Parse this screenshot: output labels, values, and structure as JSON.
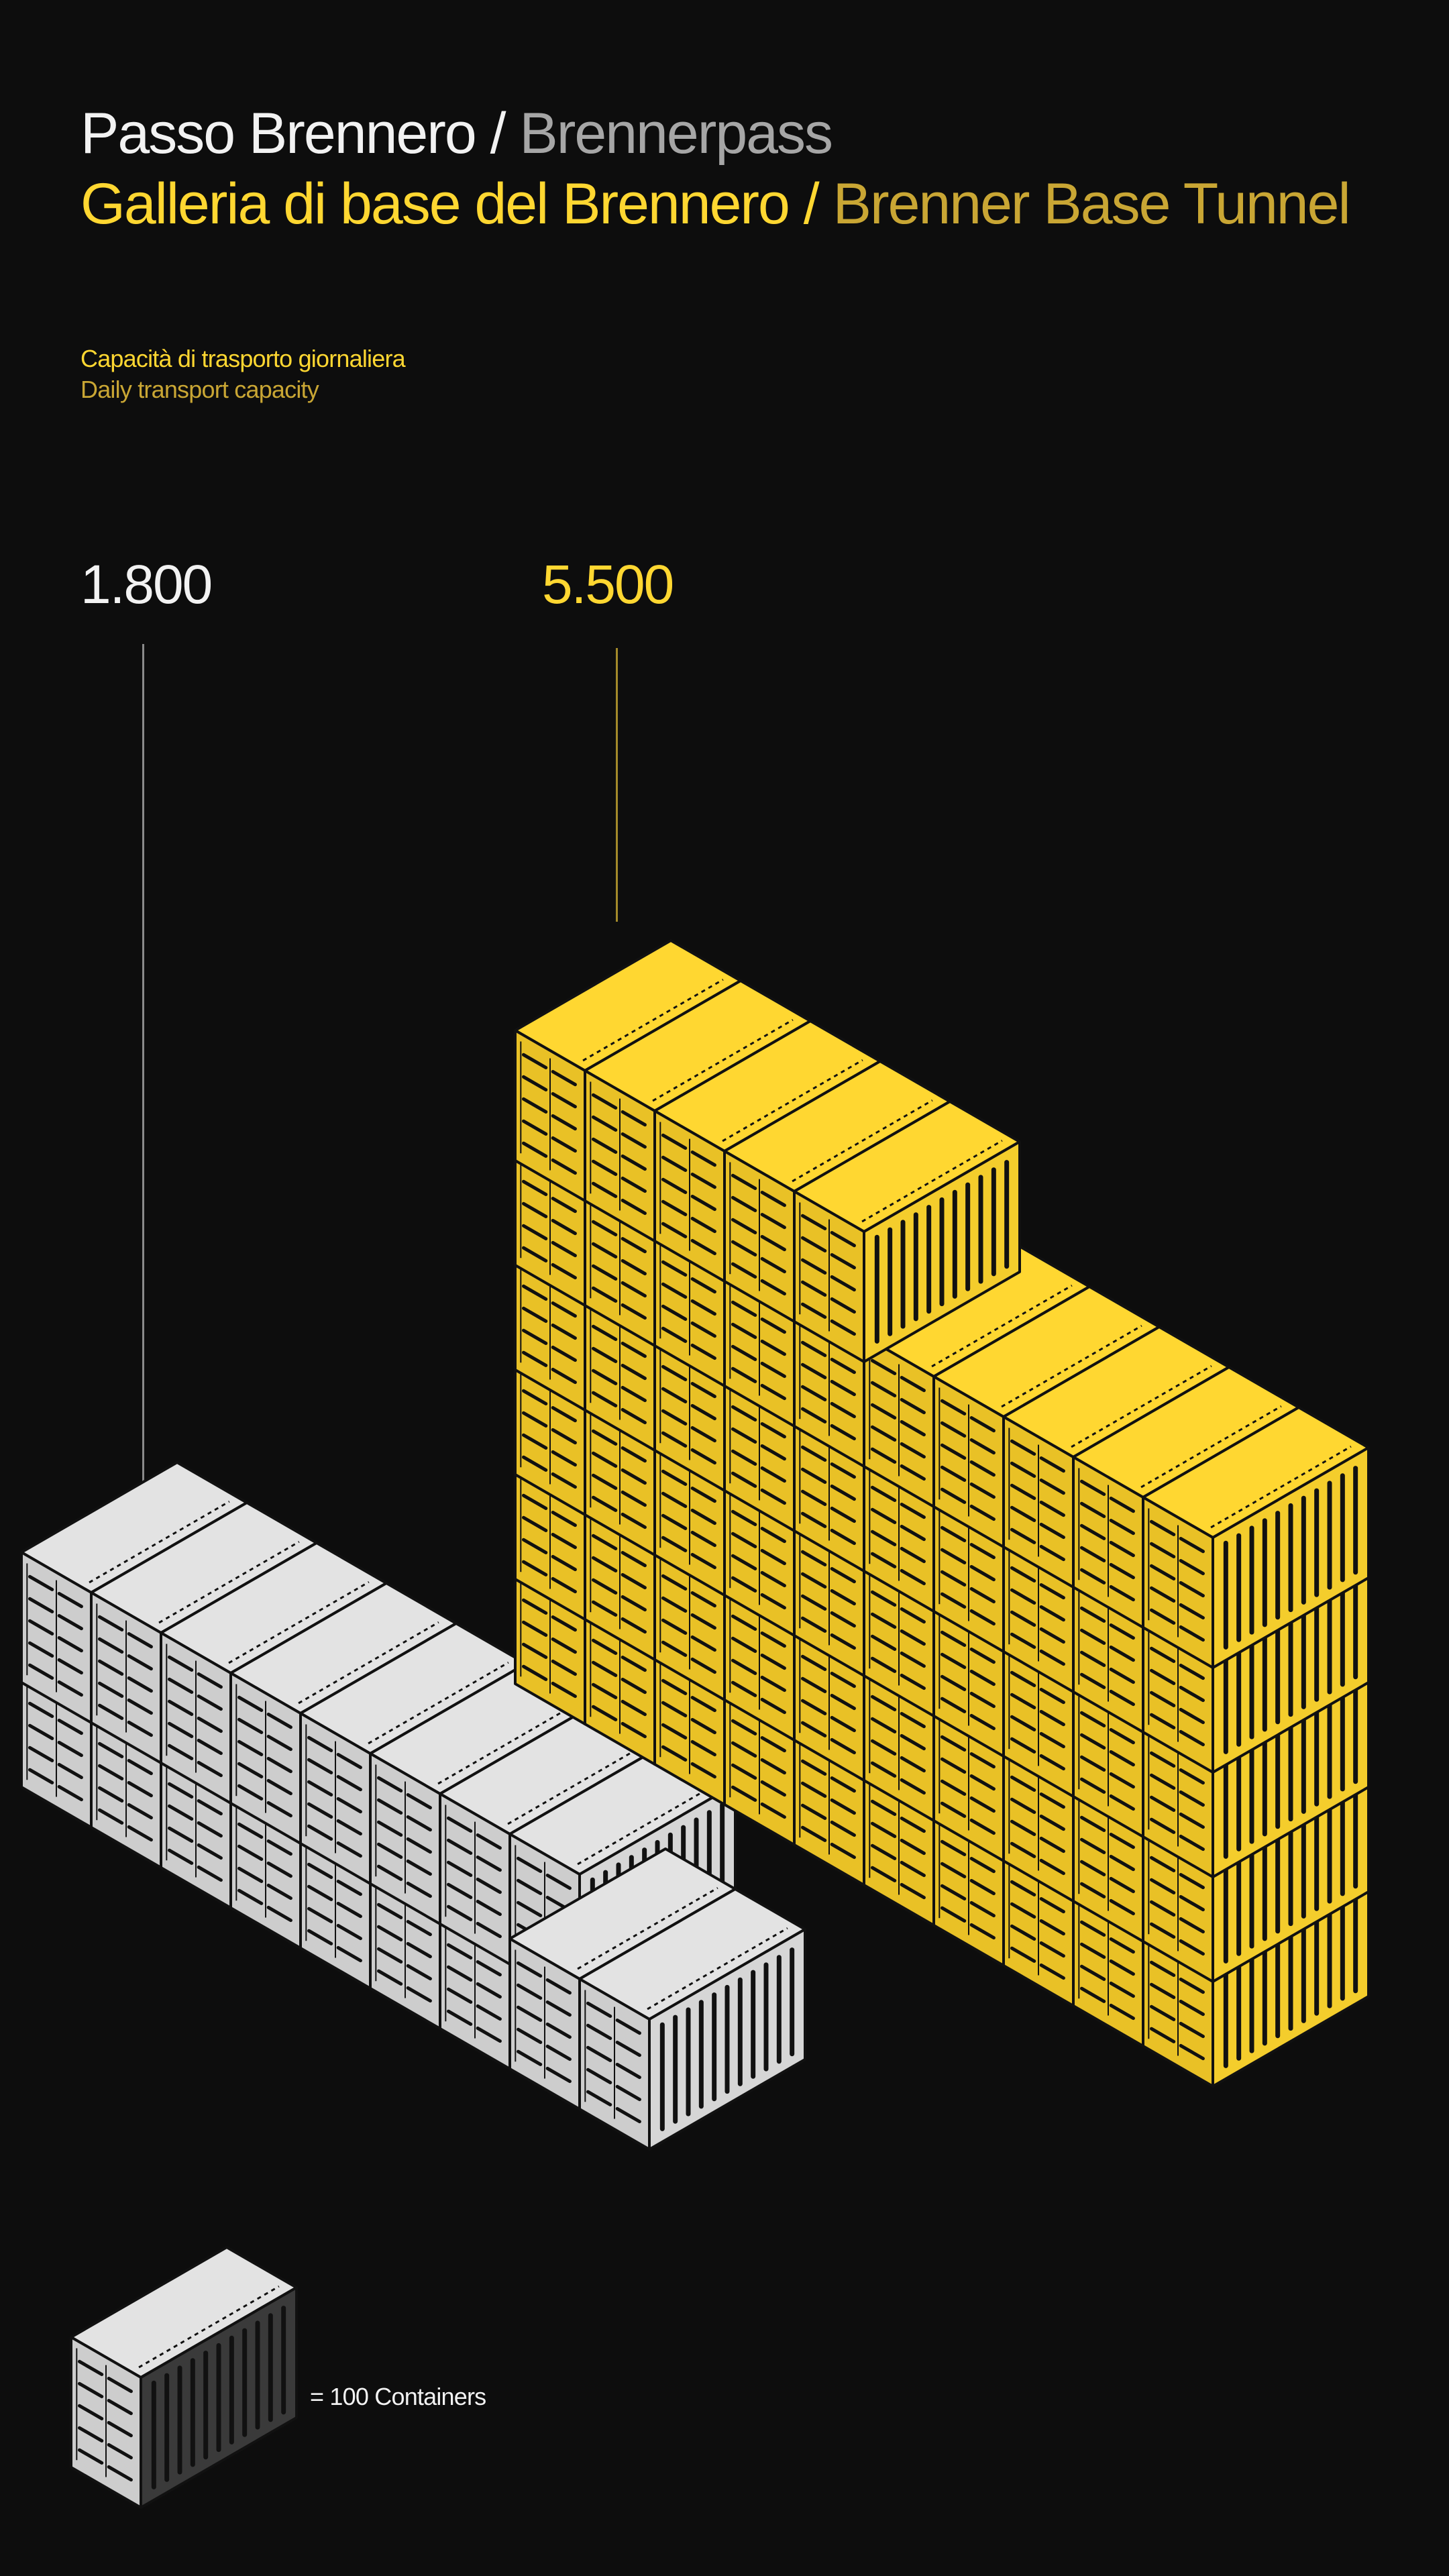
{
  "header": {
    "title_it": "Passo Brennero",
    "title_sep": " / ",
    "title_de": "Brennerpass",
    "subtitle_it": "Galleria di base del Brennero",
    "subtitle_sep": " / ",
    "subtitle_en": "Brenner Base Tunnel"
  },
  "metric": {
    "label_it": "Capacità di trasporto giornaliera",
    "label_en": "Daily transport capacity"
  },
  "colors": {
    "background": "#0d0d0d",
    "white": "#f2f2f2",
    "grey": "#a6a6a6",
    "yellow": "#ffd731",
    "yellow_dim": "#c9a634",
    "container_grey_top": "#e3e3e3",
    "container_grey_side": "#d6d6d6",
    "container_grey_end": "#cdcdcd",
    "container_yellow_top": "#ffd731",
    "container_yellow_side": "#f4cd2c",
    "container_yellow_end": "#e9c126",
    "outline": "#111111"
  },
  "legend": {
    "text": "= 100 Containers",
    "unit": 100
  },
  "chart_data": {
    "type": "isotype",
    "unit_label": "= 100 Containers",
    "unit_value": 100,
    "categories": [
      "Passo Brennero / Brennerpass",
      "Galleria di base del Brennero / Brenner Base Tunnel"
    ],
    "values": [
      1800,
      5500
    ],
    "value_labels": [
      "1.800",
      "5.500"
    ],
    "icon_counts": [
      18,
      55
    ],
    "series": [
      {
        "name": "Passo Brennero / Brennerpass",
        "value": 1800,
        "label": "1.800",
        "icons": 18
      },
      {
        "name": "Galleria di base del Brennero / Brenner Base Tunnel",
        "value": 5500,
        "label": "5.500",
        "icons": 55
      }
    ]
  }
}
